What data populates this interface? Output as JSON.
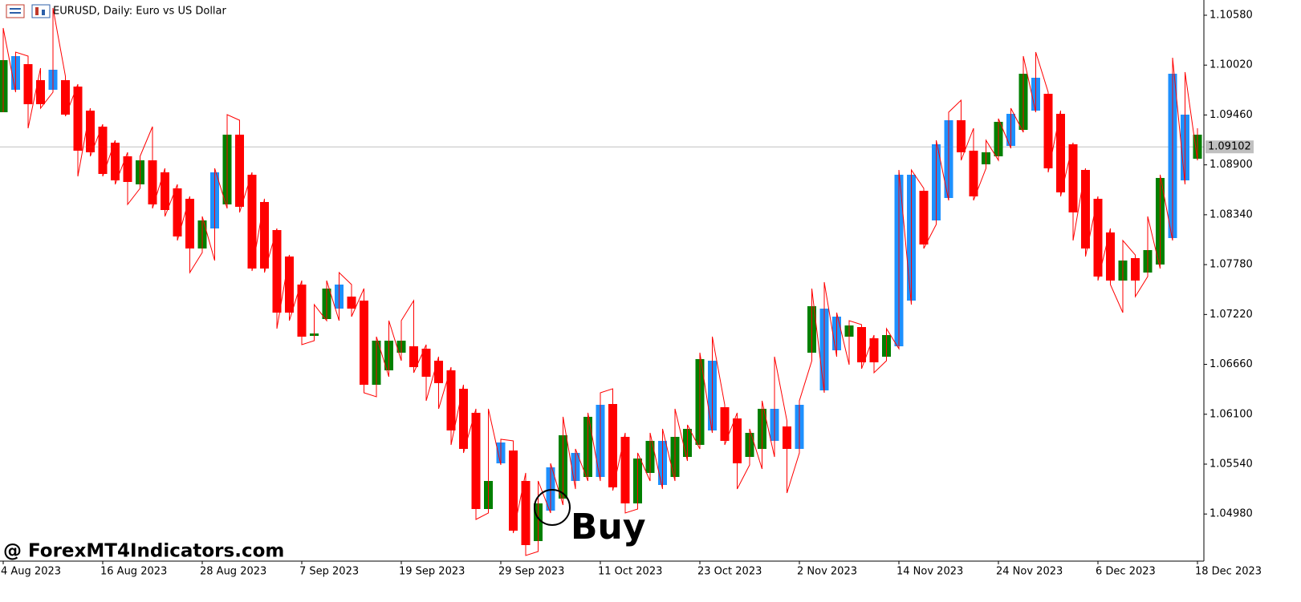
{
  "chart_data": {
    "type": "candlestick",
    "title": "EURUSD, Daily:  Euro vs US Dollar",
    "annotation": "Buy",
    "watermark": "@ ForexMT4Indicators.com",
    "categories": [
      "4 Aug 2023",
      null,
      null,
      null,
      null,
      null,
      null,
      null,
      "16 Aug 2023",
      null,
      null,
      null,
      null,
      null,
      null,
      null,
      "28 Aug 2023",
      null,
      null,
      null,
      null,
      null,
      null,
      null,
      "7 Sep 2023",
      null,
      null,
      null,
      null,
      null,
      null,
      null,
      "19 Sep 2023",
      null,
      null,
      null,
      null,
      null,
      null,
      null,
      "29 Sep 2023",
      null,
      null,
      null,
      null,
      null,
      null,
      null,
      "11 Oct 2023",
      null,
      null,
      null,
      null,
      null,
      null,
      null,
      "23 Oct 2023",
      null,
      null,
      null,
      null,
      null,
      null,
      null,
      "2 Nov 2023",
      null,
      null,
      null,
      null,
      null,
      null,
      null,
      "14 Nov 2023",
      null,
      null,
      null,
      null,
      null,
      null,
      null,
      "24 Nov 2023",
      null,
      null,
      null,
      null,
      null,
      null,
      null,
      "6 Dec 2023",
      null,
      null,
      null,
      null,
      null,
      null,
      null,
      "18 Dec 2023"
    ],
    "open": [
      1.09491,
      1.09743,
      1.10031,
      1.09851,
      1.09743,
      1.09851,
      1.09779,
      1.09509,
      1.09329,
      1.09149,
      1.08996,
      1.08681,
      1.08951,
      1.08816,
      1.08636,
      1.08519,
      1.07961,
      1.08186,
      1.08456,
      1.09239,
      1.08789,
      1.08483,
      1.08168,
      1.07871,
      1.07556,
      1.0698,
      1.07169,
      1.07286,
      1.07421,
      1.07376,
      1.06431,
      1.06593,
      1.06791,
      1.06863,
      1.06836,
      1.06701,
      1.06593,
      1.06386,
      1.06116,
      1.05036,
      1.05549,
      1.05693,
      1.05351,
      1.04676,
      1.05018,
      1.05153,
      1.05351,
      1.05396,
      1.05396,
      1.06215,
      1.05846,
      1.05099,
      1.05441,
      1.05306,
      1.05396,
      1.05621,
      1.05756,
      1.05918,
      1.06179,
      1.06053,
      1.05621,
      1.05711,
      1.05801,
      1.05963,
      1.05711,
      1.06791,
      1.06368,
      1.06818,
      1.06971,
      1.07079,
      1.06953,
      1.06746,
      1.06863,
      1.07376,
      1.08609,
      1.08276,
      1.08528,
      1.09401,
      1.09059,
      1.08906,
      1.08996,
      1.09113,
      1.09293,
      1.09509,
      1.09698,
      1.09473,
      1.09131,
      1.08843,
      1.08519,
      1.08141,
      1.07601,
      1.07853,
      1.07691,
      1.07781,
      1.08078,
      1.08726,
      1.08969
    ],
    "high": [
      1.10436,
      1.10166,
      1.10121,
      1.09986,
      1.10661,
      1.09896,
      1.09806,
      1.09536,
      1.09356,
      1.09176,
      1.09041,
      1.08996,
      1.09329,
      1.08861,
      1.08681,
      1.08546,
      1.08321,
      1.08861,
      1.09464,
      1.09401,
      1.08816,
      1.08519,
      1.08186,
      1.07889,
      1.07601,
      1.07331,
      1.07601,
      1.07691,
      1.07556,
      1.07511,
      1.06971,
      1.07151,
      1.07151,
      1.07376,
      1.06881,
      1.06746,
      1.06629,
      1.06431,
      1.06161,
      1.06161,
      1.05819,
      1.05801,
      1.05441,
      1.05351,
      1.05549,
      1.06071,
      1.05711,
      1.06116,
      1.06341,
      1.06386,
      1.05891,
      1.05666,
      1.05891,
      1.05936,
      1.06161,
      1.05981,
      1.06791,
      1.06971,
      1.06206,
      1.06116,
      1.05936,
      1.06251,
      1.06746,
      1.06026,
      1.06251,
      1.07511,
      1.07583,
      1.07241,
      1.07151,
      1.07106,
      1.06989,
      1.07061,
      1.08843,
      1.08843,
      1.08636,
      1.09176,
      1.09491,
      1.09626,
      1.09311,
      1.09176,
      1.09419,
      1.09536,
      1.10121,
      1.10166,
      1.09716,
      1.09509,
      1.09149,
      1.08861,
      1.08546,
      1.08186,
      1.08051,
      1.07889,
      1.08321,
      1.08789,
      1.10103,
      1.09941,
      1.09311
    ],
    "low": [
      1.09491,
      1.09716,
      1.09311,
      1.09536,
      1.09716,
      1.09446,
      1.08771,
      1.08996,
      1.08771,
      1.08681,
      1.08456,
      1.08636,
      1.08411,
      1.08321,
      1.08051,
      1.07691,
      1.07916,
      1.07826,
      1.08411,
      1.08366,
      1.07709,
      1.07691,
      1.07061,
      1.07151,
      1.06881,
      1.06926,
      1.07151,
      1.07151,
      1.07196,
      1.06341,
      1.06296,
      1.06521,
      1.06701,
      1.06566,
      1.06251,
      1.06161,
      1.05756,
      1.05666,
      1.04919,
      1.04991,
      1.05531,
      1.04766,
      1.04514,
      1.04559,
      1.04991,
      1.05081,
      1.05261,
      1.05351,
      1.05351,
      1.05243,
      1.04991,
      1.05036,
      1.05351,
      1.05261,
      1.05351,
      1.05576,
      1.05711,
      1.05891,
      1.05756,
      1.05261,
      1.05531,
      1.05486,
      1.05621,
      1.05216,
      1.05666,
      1.06701,
      1.06341,
      1.06746,
      1.06656,
      1.06611,
      1.06566,
      1.06701,
      1.06836,
      1.07331,
      1.07961,
      1.08231,
      1.08501,
      1.08951,
      1.08501,
      1.08861,
      1.08951,
      1.09086,
      1.09266,
      1.09491,
      1.08816,
      1.08546,
      1.08051,
      1.07871,
      1.07601,
      1.07556,
      1.07241,
      1.07421,
      1.07646,
      1.07736,
      1.08051,
      1.08681,
      1.08951
    ],
    "close": [
      1.10076,
      1.10121,
      1.09581,
      1.09581,
      1.09968,
      1.09464,
      1.09059,
      1.09041,
      1.08798,
      1.08726,
      1.08708,
      1.08951,
      1.08456,
      1.08393,
      1.08096,
      1.07961,
      1.08276,
      1.08816,
      1.09239,
      1.08429,
      1.07736,
      1.07736,
      1.07241,
      1.07241,
      1.06971,
      1.07007,
      1.07511,
      1.07556,
      1.07286,
      1.06431,
      1.06926,
      1.06926,
      1.06926,
      1.06629,
      1.06521,
      1.06449,
      1.05918,
      1.05711,
      1.05036,
      1.05351,
      1.05783,
      1.04793,
      1.04631,
      1.05099,
      1.05504,
      1.05864,
      1.05666,
      1.06071,
      1.06206,
      1.05279,
      1.05099,
      1.05603,
      1.05801,
      1.05801,
      1.05846,
      1.05936,
      1.06719,
      1.06701,
      1.05801,
      1.05549,
      1.05891,
      1.06161,
      1.06161,
      1.05711,
      1.06206,
      1.07313,
      1.07286,
      1.07196,
      1.07097,
      1.06683,
      1.06683,
      1.06989,
      1.08789,
      1.08789,
      1.08006,
      1.09131,
      1.09401,
      1.09041,
      1.08546,
      1.09041,
      1.09383,
      1.09473,
      1.09923,
      1.09878,
      1.08861,
      1.08591,
      1.08366,
      1.07961,
      1.07646,
      1.07601,
      1.07826,
      1.07601,
      1.07943,
      1.08753,
      1.09923,
      1.09464,
      1.09239
    ],
    "candle_colors": [
      "#008000",
      "#1e90ff",
      "#ff0000",
      "#ff0000",
      "#1e90ff",
      "#ff0000",
      "#ff0000",
      "#ff0000",
      "#ff0000",
      "#ff0000",
      "#ff0000",
      "#008000",
      "#ff0000",
      "#ff0000",
      "#ff0000",
      "#ff0000",
      "#008000",
      "#1e90ff",
      "#008000",
      "#ff0000",
      "#ff0000",
      "#ff0000",
      "#ff0000",
      "#ff0000",
      "#ff0000",
      "#008000",
      "#008000",
      "#1e90ff",
      "#ff0000",
      "#ff0000",
      "#008000",
      "#008000",
      "#008000",
      "#ff0000",
      "#ff0000",
      "#ff0000",
      "#ff0000",
      "#ff0000",
      "#ff0000",
      "#008000",
      "#1e90ff",
      "#ff0000",
      "#ff0000",
      "#008000",
      "#1e90ff",
      "#008000",
      "#1e90ff",
      "#008000",
      "#1e90ff",
      "#ff0000",
      "#ff0000",
      "#008000",
      "#008000",
      "#1e90ff",
      "#008000",
      "#008000",
      "#008000",
      "#1e90ff",
      "#ff0000",
      "#ff0000",
      "#008000",
      "#008000",
      "#1e90ff",
      "#ff0000",
      "#1e90ff",
      "#008000",
      "#1e90ff",
      "#1e90ff",
      "#008000",
      "#ff0000",
      "#ff0000",
      "#008000",
      "#1e90ff",
      "#1e90ff",
      "#ff0000",
      "#1e90ff",
      "#1e90ff",
      "#ff0000",
      "#ff0000",
      "#008000",
      "#008000",
      "#1e90ff",
      "#008000",
      "#1e90ff",
      "#ff0000",
      "#ff0000",
      "#ff0000",
      "#ff0000",
      "#ff0000",
      "#ff0000",
      "#008000",
      "#ff0000",
      "#008000",
      "#008000",
      "#1e90ff",
      "#1e90ff",
      "#008000"
    ],
    "zigzag_color": "#ff0000",
    "current_price": {
      "value": 1.09102,
      "label": "1.09102"
    },
    "ylim": [
      1.04451,
      1.10751
    ],
    "yticks": [
      {
        "value": 1.1058,
        "label": "1.10580"
      },
      {
        "value": 1.1002,
        "label": "1.10020"
      },
      {
        "value": 1.0946,
        "label": "1.09460"
      },
      {
        "value": 1.089,
        "label": "1.08900"
      },
      {
        "value": 1.0834,
        "label": "1.08340"
      },
      {
        "value": 1.0778,
        "label": "1.07780"
      },
      {
        "value": 1.0722,
        "label": "1.07220"
      },
      {
        "value": 1.0666,
        "label": "1.06660"
      },
      {
        "value": 1.061,
        "label": "1.06100"
      },
      {
        "value": 1.0554,
        "label": "1.05540"
      },
      {
        "value": 1.0498,
        "label": "1.04980"
      }
    ]
  }
}
